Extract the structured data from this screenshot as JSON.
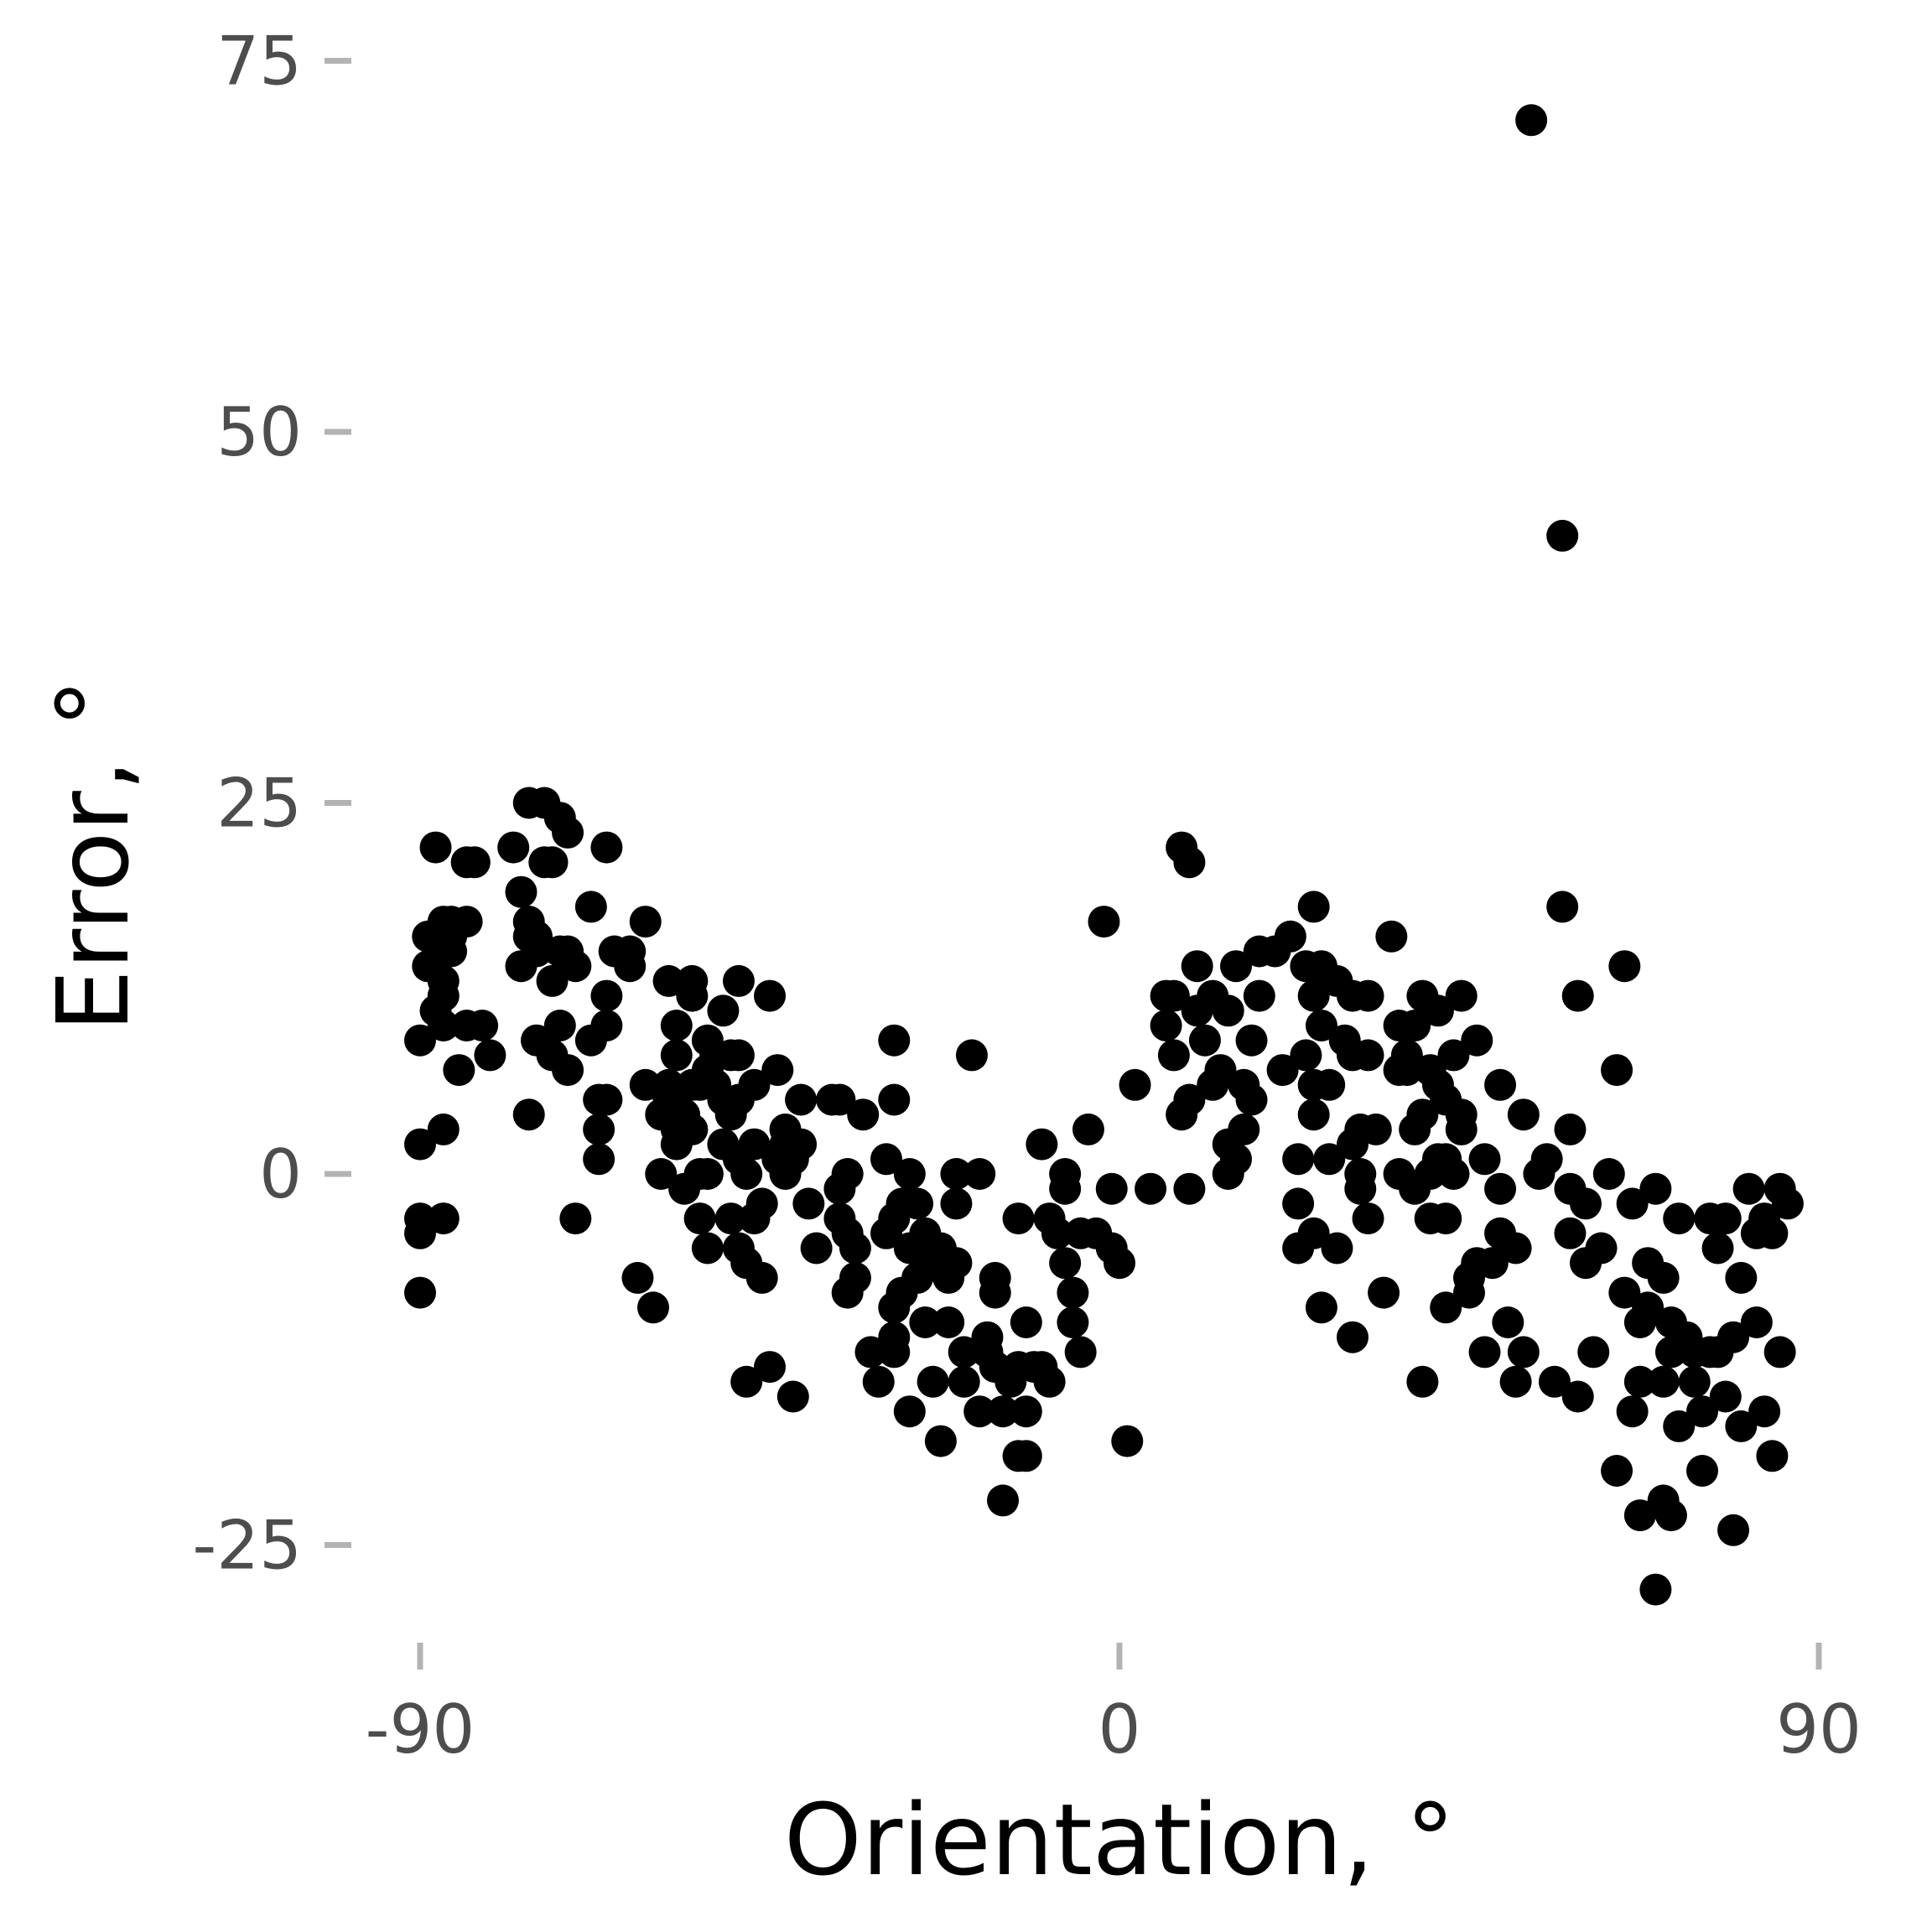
{
  "chart_data": {
    "type": "scatter",
    "title": "",
    "xlabel": "Orientation, °",
    "ylabel": "Error, °",
    "xlim": [
      -96,
      96
    ],
    "ylim": [
      -32,
      79
    ],
    "xticks": [
      -90,
      0,
      90
    ],
    "xtick_labels": [
      "-90",
      "0",
      "90"
    ],
    "yticks": [
      -25,
      0,
      25,
      50,
      75
    ],
    "ytick_labels": [
      "-25",
      "0",
      "25",
      "50",
      "75"
    ],
    "grid": false,
    "legend": "none",
    "point_color": "#000000",
    "points": [
      [
        -90,
        9
      ],
      [
        -90,
        2
      ],
      [
        -90,
        -3
      ],
      [
        -90,
        -4
      ],
      [
        -90,
        -8
      ],
      [
        -89,
        16
      ],
      [
        -89,
        14
      ],
      [
        -88,
        22
      ],
      [
        -88,
        11
      ],
      [
        -88,
        16
      ],
      [
        -87,
        17
      ],
      [
        -87,
        15
      ],
      [
        -87,
        13
      ],
      [
        -87,
        12
      ],
      [
        -87,
        10
      ],
      [
        -87,
        3
      ],
      [
        -87,
        -3
      ],
      [
        -86,
        17
      ],
      [
        -86,
        15
      ],
      [
        -86,
        16
      ],
      [
        -85,
        7
      ],
      [
        -84,
        21
      ],
      [
        -84,
        10
      ],
      [
        -84,
        17
      ],
      [
        -83,
        21
      ],
      [
        -82,
        10
      ],
      [
        -81,
        8
      ],
      [
        -78,
        22
      ],
      [
        -77,
        19
      ],
      [
        -77,
        14
      ],
      [
        -76,
        17
      ],
      [
        -76,
        16
      ],
      [
        -76,
        25
      ],
      [
        -76,
        4
      ],
      [
        -75,
        16
      ],
      [
        -75,
        15
      ],
      [
        -75,
        9
      ],
      [
        -74,
        25
      ],
      [
        -74,
        21
      ],
      [
        -73,
        13
      ],
      [
        -73,
        21
      ],
      [
        -73,
        8
      ],
      [
        -72,
        15
      ],
      [
        -72,
        10
      ],
      [
        -72,
        24
      ],
      [
        -71,
        7
      ],
      [
        -71,
        23
      ],
      [
        -71,
        15
      ],
      [
        -70,
        -3
      ],
      [
        -70,
        14
      ],
      [
        -68,
        18
      ],
      [
        -68,
        9
      ],
      [
        -67,
        3
      ],
      [
        -67,
        1
      ],
      [
        -67,
        5
      ],
      [
        -66,
        22
      ],
      [
        -66,
        10
      ],
      [
        -66,
        12
      ],
      [
        -66,
        5
      ],
      [
        -65,
        15
      ],
      [
        -63,
        15
      ],
      [
        -63,
        14
      ],
      [
        -62,
        -7
      ],
      [
        -61,
        6
      ],
      [
        -61,
        17
      ],
      [
        -60,
        -9
      ],
      [
        -59,
        4
      ],
      [
        -59,
        0
      ],
      [
        -58,
        13
      ],
      [
        -58,
        6
      ],
      [
        -58,
        5
      ],
      [
        -57,
        10
      ],
      [
        -57,
        2
      ],
      [
        -57,
        3
      ],
      [
        -57,
        8
      ],
      [
        -56,
        -1
      ],
      [
        -56,
        4
      ],
      [
        -55,
        13
      ],
      [
        -55,
        12
      ],
      [
        -55,
        6
      ],
      [
        -55,
        3
      ],
      [
        -54,
        -3
      ],
      [
        -54,
        0
      ],
      [
        -54,
        6
      ],
      [
        -53,
        9
      ],
      [
        -53,
        7
      ],
      [
        -53,
        0
      ],
      [
        -53,
        -5
      ],
      [
        -52,
        8
      ],
      [
        -52,
        6
      ],
      [
        -51,
        5
      ],
      [
        -51,
        2
      ],
      [
        -51,
        11
      ],
      [
        -50,
        4
      ],
      [
        -50,
        8
      ],
      [
        -50,
        -3
      ],
      [
        -49,
        13
      ],
      [
        -49,
        8
      ],
      [
        -49,
        1
      ],
      [
        -49,
        5
      ],
      [
        -49,
        -5
      ],
      [
        -48,
        -6
      ],
      [
        -48,
        0
      ],
      [
        -48,
        -14
      ],
      [
        -47,
        6
      ],
      [
        -47,
        2
      ],
      [
        -47,
        -3
      ],
      [
        -46,
        -7
      ],
      [
        -46,
        -2
      ],
      [
        -45,
        12
      ],
      [
        -45,
        -13
      ],
      [
        -44,
        1
      ],
      [
        -44,
        7
      ],
      [
        -43,
        3
      ],
      [
        -43,
        2
      ],
      [
        -43,
        0
      ],
      [
        -42,
        1
      ],
      [
        -42,
        -15
      ],
      [
        -41,
        2
      ],
      [
        -41,
        5
      ],
      [
        -40,
        -2
      ],
      [
        -39,
        -5
      ],
      [
        -37,
        5
      ],
      [
        -36,
        5
      ],
      [
        -36,
        -1
      ],
      [
        -36,
        -3
      ],
      [
        -35,
        -4
      ],
      [
        -35,
        0
      ],
      [
        -35,
        -8
      ],
      [
        -34,
        -5
      ],
      [
        -34,
        -7
      ],
      [
        -33,
        4
      ],
      [
        -32,
        -12
      ],
      [
        -31,
        -14
      ],
      [
        -30,
        1
      ],
      [
        -30,
        -4
      ],
      [
        -29,
        9
      ],
      [
        -29,
        5
      ],
      [
        -29,
        -3
      ],
      [
        -29,
        -9
      ],
      [
        -29,
        -11
      ],
      [
        -29,
        -12
      ],
      [
        -28,
        -2
      ],
      [
        -28,
        -8
      ],
      [
        -27,
        -16
      ],
      [
        -27,
        0
      ],
      [
        -27,
        -5
      ],
      [
        -26,
        -2
      ],
      [
        -26,
        -7
      ],
      [
        -25,
        -4
      ],
      [
        -25,
        -10
      ],
      [
        -24,
        -6
      ],
      [
        -24,
        -14
      ],
      [
        -23,
        -18
      ],
      [
        -23,
        -5
      ],
      [
        -22,
        -7
      ],
      [
        -22,
        -10
      ],
      [
        -21,
        -6
      ],
      [
        -21,
        -2
      ],
      [
        -21,
        0
      ],
      [
        -20,
        -12
      ],
      [
        -20,
        -14
      ],
      [
        -19,
        8
      ],
      [
        -18,
        0
      ],
      [
        -18,
        -16
      ],
      [
        -17,
        -12
      ],
      [
        -17,
        -11
      ],
      [
        -16,
        -13
      ],
      [
        -16,
        -7
      ],
      [
        -16,
        -8
      ],
      [
        -15,
        -22
      ],
      [
        -15,
        -16
      ],
      [
        -14,
        -14
      ],
      [
        -13,
        -19
      ],
      [
        -13,
        -3
      ],
      [
        -13,
        -13
      ],
      [
        -12,
        -10
      ],
      [
        -12,
        -16
      ],
      [
        -12,
        -19
      ],
      [
        -11,
        -13
      ],
      [
        -10,
        2
      ],
      [
        -10,
        -13
      ],
      [
        -9,
        -3
      ],
      [
        -9,
        -14
      ],
      [
        -8,
        -4
      ],
      [
        -7,
        0
      ],
      [
        -7,
        -1
      ],
      [
        -7,
        -6
      ],
      [
        -6,
        -8
      ],
      [
        -6,
        -10
      ],
      [
        -5,
        -12
      ],
      [
        -5,
        -4
      ],
      [
        -4,
        3
      ],
      [
        -3,
        -4
      ],
      [
        -2,
        17
      ],
      [
        -1,
        -5
      ],
      [
        -1,
        -1
      ],
      [
        0,
        -6
      ],
      [
        1,
        -18
      ],
      [
        2,
        6
      ],
      [
        4,
        -1
      ],
      [
        6,
        12
      ],
      [
        6,
        10
      ],
      [
        7,
        12
      ],
      [
        7,
        8
      ],
      [
        8,
        4
      ],
      [
        8,
        22
      ],
      [
        9,
        5
      ],
      [
        9,
        21
      ],
      [
        9,
        -1
      ],
      [
        10,
        11
      ],
      [
        10,
        14
      ],
      [
        11,
        9
      ],
      [
        12,
        12
      ],
      [
        12,
        6
      ],
      [
        13,
        7
      ],
      [
        14,
        2
      ],
      [
        14,
        0
      ],
      [
        14,
        11
      ],
      [
        15,
        14
      ],
      [
        15,
        1
      ],
      [
        16,
        3
      ],
      [
        16,
        6
      ],
      [
        17,
        9
      ],
      [
        17,
        5
      ],
      [
        18,
        12
      ],
      [
        18,
        15
      ],
      [
        20,
        15
      ],
      [
        21,
        7
      ],
      [
        22,
        16
      ],
      [
        23,
        1
      ],
      [
        23,
        -2
      ],
      [
        23,
        -5
      ],
      [
        24,
        14
      ],
      [
        24,
        8
      ],
      [
        25,
        12
      ],
      [
        25,
        6
      ],
      [
        25,
        4
      ],
      [
        25,
        18
      ],
      [
        25,
        -4
      ],
      [
        26,
        14
      ],
      [
        26,
        10
      ],
      [
        26,
        -9
      ],
      [
        27,
        6
      ],
      [
        27,
        1
      ],
      [
        28,
        13
      ],
      [
        28,
        -5
      ],
      [
        29,
        9
      ],
      [
        30,
        2
      ],
      [
        30,
        8
      ],
      [
        30,
        12
      ],
      [
        30,
        -11
      ],
      [
        31,
        0
      ],
      [
        31,
        3
      ],
      [
        31,
        -1
      ],
      [
        32,
        12
      ],
      [
        32,
        8
      ],
      [
        32,
        -3
      ],
      [
        33,
        3
      ],
      [
        34,
        -8
      ],
      [
        35,
        16
      ],
      [
        36,
        10
      ],
      [
        36,
        7
      ],
      [
        36,
        0
      ],
      [
        37,
        7
      ],
      [
        37,
        8
      ],
      [
        38,
        10
      ],
      [
        38,
        -1
      ],
      [
        38,
        3
      ],
      [
        39,
        12
      ],
      [
        39,
        4
      ],
      [
        39,
        -14
      ],
      [
        40,
        7
      ],
      [
        40,
        0
      ],
      [
        40,
        -3
      ],
      [
        41,
        11
      ],
      [
        41,
        6
      ],
      [
        41,
        1
      ],
      [
        42,
        5
      ],
      [
        42,
        1
      ],
      [
        42,
        -3
      ],
      [
        42,
        -9
      ],
      [
        43,
        8
      ],
      [
        43,
        0
      ],
      [
        44,
        4
      ],
      [
        44,
        12
      ],
      [
        44,
        3
      ],
      [
        45,
        -7
      ],
      [
        45,
        -8
      ],
      [
        46,
        -6
      ],
      [
        46,
        9
      ],
      [
        47,
        1
      ],
      [
        47,
        -12
      ],
      [
        48,
        -6
      ],
      [
        49,
        -1
      ],
      [
        49,
        6
      ],
      [
        49,
        -4
      ],
      [
        50,
        -10
      ],
      [
        51,
        -5
      ],
      [
        51,
        -14
      ],
      [
        52,
        4
      ],
      [
        52,
        -12
      ],
      [
        53,
        71
      ],
      [
        54,
        0
      ],
      [
        55,
        1
      ],
      [
        56,
        -14
      ],
      [
        57,
        43
      ],
      [
        57,
        18
      ],
      [
        58,
        -1
      ],
      [
        58,
        3
      ],
      [
        58,
        -4
      ],
      [
        59,
        12
      ],
      [
        59,
        -15
      ],
      [
        60,
        -2
      ],
      [
        60,
        -6
      ],
      [
        61,
        -12
      ],
      [
        62,
        -5
      ],
      [
        63,
        0
      ],
      [
        64,
        -20
      ],
      [
        64,
        7
      ],
      [
        65,
        14
      ],
      [
        65,
        -8
      ],
      [
        66,
        -16
      ],
      [
        66,
        -2
      ],
      [
        67,
        -23
      ],
      [
        67,
        -10
      ],
      [
        67,
        -14
      ],
      [
        68,
        -6
      ],
      [
        68,
        -9
      ],
      [
        69,
        -28
      ],
      [
        69,
        -1
      ],
      [
        70,
        -7
      ],
      [
        70,
        -22
      ],
      [
        70,
        -14
      ],
      [
        71,
        -12
      ],
      [
        71,
        -10
      ],
      [
        71,
        -23
      ],
      [
        72,
        -3
      ],
      [
        72,
        -17
      ],
      [
        73,
        -11
      ],
      [
        74,
        -12
      ],
      [
        74,
        -14
      ],
      [
        75,
        -20
      ],
      [
        75,
        -16
      ],
      [
        76,
        -3
      ],
      [
        76,
        -12
      ],
      [
        77,
        -5
      ],
      [
        77,
        -12
      ],
      [
        78,
        -15
      ],
      [
        78,
        -3
      ],
      [
        79,
        -24
      ],
      [
        79,
        -11
      ],
      [
        80,
        -17
      ],
      [
        80,
        -7
      ],
      [
        81,
        -1
      ],
      [
        82,
        -4
      ],
      [
        82,
        -10
      ],
      [
        83,
        -3
      ],
      [
        83,
        -16
      ],
      [
        84,
        -19
      ],
      [
        84,
        -4
      ],
      [
        85,
        -1
      ],
      [
        85,
        -12
      ],
      [
        86,
        -2
      ]
    ]
  }
}
